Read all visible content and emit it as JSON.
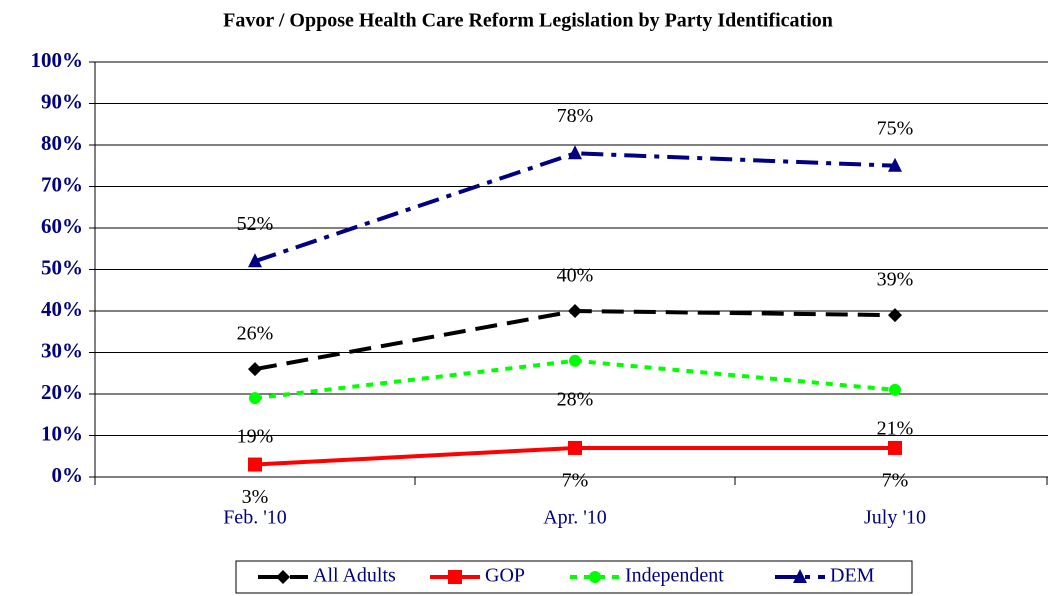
{
  "chart_data": {
    "type": "line",
    "title": "Favor / Oppose Health Care Reform Legislation by Party Identification",
    "categories": [
      "Feb. '10",
      "Apr. '10",
      "July '10"
    ],
    "series": [
      {
        "name": "All Adults",
        "color": "#000000",
        "marker": "diamond",
        "values": [
          26,
          40,
          39
        ],
        "value_labels": [
          "26%",
          "40%",
          "39%"
        ]
      },
      {
        "name": "GOP",
        "color": "#ff0000",
        "marker": "square",
        "values": [
          3,
          7,
          7
        ],
        "value_labels": [
          "3%",
          "7%",
          "7%"
        ]
      },
      {
        "name": "Independent",
        "color": "#00ff00",
        "marker": "circle",
        "values": [
          19,
          28,
          21
        ],
        "value_labels": [
          "19%",
          "28%",
          "21%"
        ]
      },
      {
        "name": "DEM",
        "color": "#000080",
        "marker": "triangle",
        "values": [
          52,
          78,
          75
        ],
        "value_labels": [
          "52%",
          "78%",
          "75%"
        ]
      }
    ],
    "ylim": [
      0,
      100
    ],
    "yticks": [
      {
        "value": 0,
        "label": "0%"
      },
      {
        "value": 10,
        "label": "10%"
      },
      {
        "value": 20,
        "label": "20%"
      },
      {
        "value": 30,
        "label": "30%"
      },
      {
        "value": 40,
        "label": "40%"
      },
      {
        "value": 50,
        "label": "50%"
      },
      {
        "value": 60,
        "label": "60%"
      },
      {
        "value": 70,
        "label": "70%"
      },
      {
        "value": 80,
        "label": "80%"
      },
      {
        "value": 90,
        "label": "90%"
      },
      {
        "value": 100,
        "label": "100%"
      }
    ],
    "grid": true,
    "legend": "bottom"
  }
}
